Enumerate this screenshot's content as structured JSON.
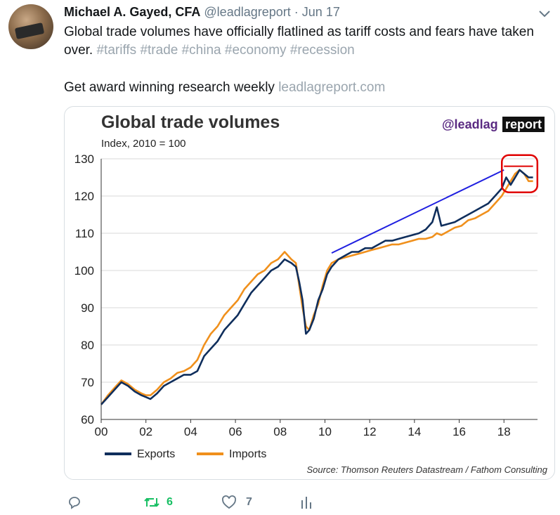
{
  "tweet": {
    "author_name": "Michael A. Gayed, CFA",
    "handle": "@leadlagreport",
    "separator": "·",
    "date": "Jun 17",
    "text_plain": "Global trade volumes have officially flatlined as tariff costs and fears have taken over.",
    "hashtags": [
      "#tariffs",
      "#trade",
      "#china",
      "#economy",
      "#recession"
    ],
    "promo_text": "Get award winning research weekly",
    "promo_link": "leadlagreport.com",
    "retweets": "6",
    "likes": "7"
  },
  "icons": [
    "avatar-photo",
    "chevron-down-icon",
    "reply-icon",
    "retweet-icon",
    "like-icon",
    "analytics-icon"
  ],
  "colors": {
    "exports": "#0f2e5c",
    "imports": "#f0901c",
    "trendline": "#1f1fe0",
    "highlight": "#e00000",
    "retweet_green": "#17bf63"
  },
  "chart_data": {
    "type": "line",
    "title": "Global trade volumes",
    "subtitle": "Index, 2010 = 100",
    "brand": "@leadlag",
    "brand_box": "report",
    "source": "Source: Thomson Reuters Datastream / Fathom Consulting",
    "ylim": [
      60,
      130
    ],
    "yticks": [
      60,
      70,
      80,
      90,
      100,
      110,
      120,
      130
    ],
    "xlim": [
      2000,
      2019.5
    ],
    "xticks": [
      2000,
      2002,
      2004,
      2006,
      2008,
      2010,
      2012,
      2014,
      2016,
      2018
    ],
    "xtick_labels": [
      "00",
      "02",
      "04",
      "06",
      "08",
      "10",
      "12",
      "14",
      "16",
      "18"
    ],
    "grid": true,
    "legend_position": "bottom-left",
    "series": [
      {
        "name": "Exports",
        "points": [
          [
            2000.0,
            64
          ],
          [
            2000.3,
            66
          ],
          [
            2000.6,
            68
          ],
          [
            2000.9,
            70
          ],
          [
            2001.2,
            69
          ],
          [
            2001.5,
            67.5
          ],
          [
            2001.8,
            66.5
          ],
          [
            2002.0,
            66
          ],
          [
            2002.2,
            65.5
          ],
          [
            2002.5,
            67
          ],
          [
            2002.8,
            69
          ],
          [
            2003.1,
            70
          ],
          [
            2003.4,
            71
          ],
          [
            2003.7,
            72
          ],
          [
            2004.0,
            72
          ],
          [
            2004.3,
            73
          ],
          [
            2004.6,
            77
          ],
          [
            2004.9,
            79
          ],
          [
            2005.2,
            81
          ],
          [
            2005.5,
            84
          ],
          [
            2005.8,
            86
          ],
          [
            2006.1,
            88
          ],
          [
            2006.4,
            91
          ],
          [
            2006.7,
            94
          ],
          [
            2007.0,
            96
          ],
          [
            2007.3,
            98
          ],
          [
            2007.6,
            100
          ],
          [
            2007.9,
            101
          ],
          [
            2008.2,
            103
          ],
          [
            2008.5,
            102
          ],
          [
            2008.7,
            101
          ],
          [
            2008.85,
            97
          ],
          [
            2009.0,
            92
          ],
          [
            2009.15,
            83
          ],
          [
            2009.3,
            84
          ],
          [
            2009.5,
            87
          ],
          [
            2009.7,
            92
          ],
          [
            2009.9,
            95
          ],
          [
            2010.1,
            99
          ],
          [
            2010.3,
            101
          ],
          [
            2010.6,
            103
          ],
          [
            2010.9,
            104
          ],
          [
            2011.2,
            105
          ],
          [
            2011.5,
            105
          ],
          [
            2011.8,
            106
          ],
          [
            2012.1,
            106
          ],
          [
            2012.4,
            107
          ],
          [
            2012.7,
            108
          ],
          [
            2013.0,
            108
          ],
          [
            2013.3,
            108.5
          ],
          [
            2013.6,
            109
          ],
          [
            2013.9,
            109.5
          ],
          [
            2014.2,
            110
          ],
          [
            2014.5,
            111
          ],
          [
            2014.8,
            113
          ],
          [
            2015.0,
            117
          ],
          [
            2015.2,
            112
          ],
          [
            2015.5,
            112.5
          ],
          [
            2015.8,
            113
          ],
          [
            2016.1,
            114
          ],
          [
            2016.4,
            115
          ],
          [
            2016.7,
            116
          ],
          [
            2017.0,
            117
          ],
          [
            2017.3,
            118
          ],
          [
            2017.6,
            120
          ],
          [
            2017.9,
            122
          ],
          [
            2018.1,
            125
          ],
          [
            2018.3,
            123
          ],
          [
            2018.5,
            125
          ],
          [
            2018.7,
            127
          ],
          [
            2018.9,
            126
          ],
          [
            2019.1,
            125
          ],
          [
            2019.3,
            125
          ]
        ]
      },
      {
        "name": "Imports",
        "points": [
          [
            2000.0,
            64
          ],
          [
            2000.3,
            66.5
          ],
          [
            2000.6,
            68.5
          ],
          [
            2000.9,
            70.5
          ],
          [
            2001.2,
            69.5
          ],
          [
            2001.5,
            68
          ],
          [
            2001.8,
            67
          ],
          [
            2002.0,
            66.5
          ],
          [
            2002.2,
            66.5
          ],
          [
            2002.5,
            68
          ],
          [
            2002.8,
            70
          ],
          [
            2003.1,
            71
          ],
          [
            2003.4,
            72.5
          ],
          [
            2003.7,
            73
          ],
          [
            2004.0,
            74
          ],
          [
            2004.3,
            76
          ],
          [
            2004.6,
            80
          ],
          [
            2004.9,
            83
          ],
          [
            2005.2,
            85
          ],
          [
            2005.5,
            88
          ],
          [
            2005.8,
            90
          ],
          [
            2006.1,
            92
          ],
          [
            2006.4,
            95
          ],
          [
            2006.7,
            97
          ],
          [
            2007.0,
            99
          ],
          [
            2007.3,
            100
          ],
          [
            2007.6,
            102
          ],
          [
            2007.9,
            103
          ],
          [
            2008.2,
            105
          ],
          [
            2008.5,
            103
          ],
          [
            2008.7,
            102
          ],
          [
            2008.85,
            96
          ],
          [
            2009.0,
            90
          ],
          [
            2009.15,
            85
          ],
          [
            2009.3,
            84
          ],
          [
            2009.5,
            88
          ],
          [
            2009.7,
            91
          ],
          [
            2009.9,
            96
          ],
          [
            2010.1,
            100
          ],
          [
            2010.3,
            102
          ],
          [
            2010.6,
            103
          ],
          [
            2010.9,
            103.5
          ],
          [
            2011.2,
            104
          ],
          [
            2011.5,
            104.5
          ],
          [
            2011.8,
            105
          ],
          [
            2012.1,
            105.5
          ],
          [
            2012.4,
            106
          ],
          [
            2012.7,
            106.5
          ],
          [
            2013.0,
            107
          ],
          [
            2013.3,
            107
          ],
          [
            2013.6,
            107.5
          ],
          [
            2013.9,
            108
          ],
          [
            2014.2,
            108.5
          ],
          [
            2014.5,
            108.5
          ],
          [
            2014.8,
            109
          ],
          [
            2015.0,
            110
          ],
          [
            2015.2,
            109.5
          ],
          [
            2015.5,
            110.5
          ],
          [
            2015.8,
            111.5
          ],
          [
            2016.1,
            112
          ],
          [
            2016.4,
            113.5
          ],
          [
            2016.7,
            114
          ],
          [
            2017.0,
            115
          ],
          [
            2017.3,
            116
          ],
          [
            2017.6,
            118
          ],
          [
            2017.9,
            120
          ],
          [
            2018.1,
            122
          ],
          [
            2018.3,
            124
          ],
          [
            2018.5,
            126
          ],
          [
            2018.7,
            127
          ],
          [
            2018.9,
            126
          ],
          [
            2019.1,
            124
          ],
          [
            2019.3,
            124
          ]
        ]
      }
    ],
    "annotations": {
      "trendline": [
        [
          2010.3,
          104.7
        ],
        [
          2018.0,
          127
        ]
      ],
      "flat_line": [
        [
          2018.0,
          128
        ],
        [
          2019.3,
          128
        ]
      ],
      "highlight_box": {
        "x": [
          2018.0,
          2019.4
        ],
        "y": [
          121,
          131
        ]
      }
    }
  }
}
